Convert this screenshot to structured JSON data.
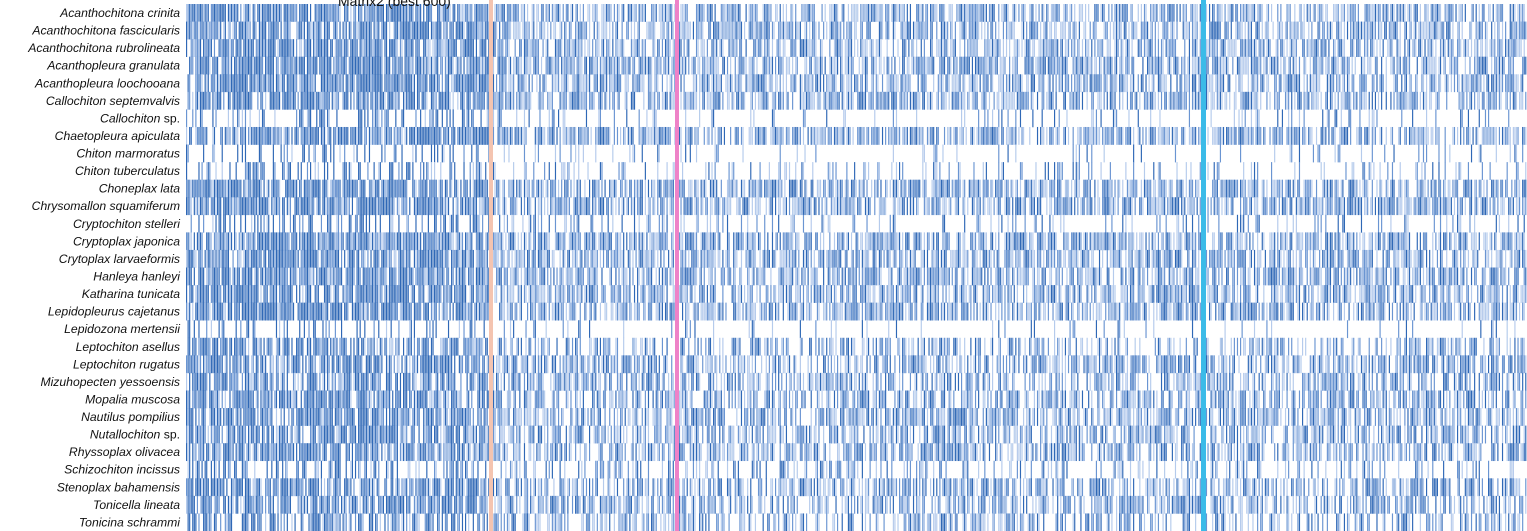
{
  "chart_data": {
    "type": "heatmap",
    "title": "Matrix2 (best 600)",
    "rows": [
      {
        "name": "Acanthochitona crinita",
        "italic": "Acanthochitona crinita",
        "plain": "",
        "density": 0.72
      },
      {
        "name": "Acanthochitona fascicularis",
        "italic": "Acanthochitona fascicularis",
        "plain": "",
        "density": 0.7
      },
      {
        "name": "Acanthochitona rubrolineata",
        "italic": "Acanthochitona rubrolineata",
        "plain": "",
        "density": 0.68
      },
      {
        "name": "Acanthopleura granulata",
        "italic": "Acanthopleura granulata",
        "plain": "",
        "density": 0.71
      },
      {
        "name": "Acanthopleura loochooana",
        "italic": "Acanthopleura loochooana",
        "plain": "",
        "density": 0.69
      },
      {
        "name": "Callochiton septemvalvis",
        "italic": "Callochiton septemvalvis",
        "plain": "",
        "density": 0.7
      },
      {
        "name": "Callochiton sp.",
        "italic": "Callochiton",
        "plain": " sp.",
        "density": 0.18
      },
      {
        "name": "Chaetopleura apiculata",
        "italic": "Chaetopleura apiculata",
        "plain": "",
        "density": 0.72
      },
      {
        "name": "Chiton marmoratus",
        "italic": "Chiton marmoratus",
        "plain": "",
        "density": 0.12
      },
      {
        "name": "Chiton tuberculatus",
        "italic": "Chiton tuberculatus",
        "plain": "",
        "density": 0.22
      },
      {
        "name": "Choneplax lata",
        "italic": "Choneplax lata",
        "plain": "",
        "density": 0.66
      },
      {
        "name": "Chrysomallon squamiferum",
        "italic": "Chrysomallon squamiferum",
        "plain": "",
        "density": 0.73
      },
      {
        "name": "Cryptochiton stelleri",
        "italic": "Cryptochiton stelleri",
        "plain": "",
        "density": 0.24
      },
      {
        "name": "Cryptoplax japonica",
        "italic": "Cryptoplax japonica",
        "plain": "",
        "density": 0.72
      },
      {
        "name": "Crytoplax larvaeformis",
        "italic": "Crytoplax larvaeformis",
        "plain": "",
        "density": 0.7
      },
      {
        "name": "Hanleya hanleyi",
        "italic": "Hanleya hanleyi",
        "plain": "",
        "density": 0.68
      },
      {
        "name": "Katharina tunicata",
        "italic": "Katharina tunicata",
        "plain": "",
        "density": 0.69
      },
      {
        "name": "Lepidopleurus cajetanus",
        "italic": "Lepidopleurus cajetanus",
        "plain": "",
        "density": 0.7
      },
      {
        "name": "Lepidozona mertensii",
        "italic": "Lepidozona mertensii",
        "plain": "",
        "density": 0.1
      },
      {
        "name": "Leptochiton asellus",
        "italic": "Leptochiton asellus",
        "plain": "",
        "density": 0.52
      },
      {
        "name": "Leptochiton rugatus",
        "italic": "Leptochiton rugatus",
        "plain": "",
        "density": 0.66
      },
      {
        "name": "Mizuhopecten yessoensis",
        "italic": "Mizuhopecten yessoensis",
        "plain": "",
        "density": 0.62
      },
      {
        "name": "Mopalia muscosa",
        "italic": "Mopalia muscosa",
        "plain": "",
        "density": 0.64
      },
      {
        "name": "Nautilus pompilius",
        "italic": "Nautilus pompilius",
        "plain": "",
        "density": 0.66
      },
      {
        "name": "Nutallochiton sp.",
        "italic": "Nutallochiton",
        "plain": " sp.",
        "density": 0.63
      },
      {
        "name": "Rhyssoplax olivacea",
        "italic": "Rhyssoplax olivacea",
        "plain": "",
        "density": 0.67
      },
      {
        "name": "Schizochiton incissus",
        "italic": "Schizochiton incissus",
        "plain": "",
        "density": 0.3
      },
      {
        "name": "Stenoplax bahamensis",
        "italic": "Stenoplax bahamensis",
        "plain": "",
        "density": 0.64
      },
      {
        "name": "Tonicella lineata",
        "italic": "Tonicella lineata",
        "plain": "",
        "density": 0.6
      },
      {
        "name": "Tonicina schrammi",
        "italic": "Tonicina schrammi",
        "plain": "",
        "density": 0.52
      }
    ],
    "boundaries": [
      {
        "color": "#f4c4b0"
      },
      {
        "color": "#ee82c8"
      },
      {
        "color": "#3bbbe8"
      }
    ],
    "colors": {
      "present_dark": "#2f68b6",
      "present_mid": "#6a95d2",
      "present_light": "#b5cbec",
      "absent": "#ffffff"
    },
    "legend": "none",
    "grid": false
  }
}
